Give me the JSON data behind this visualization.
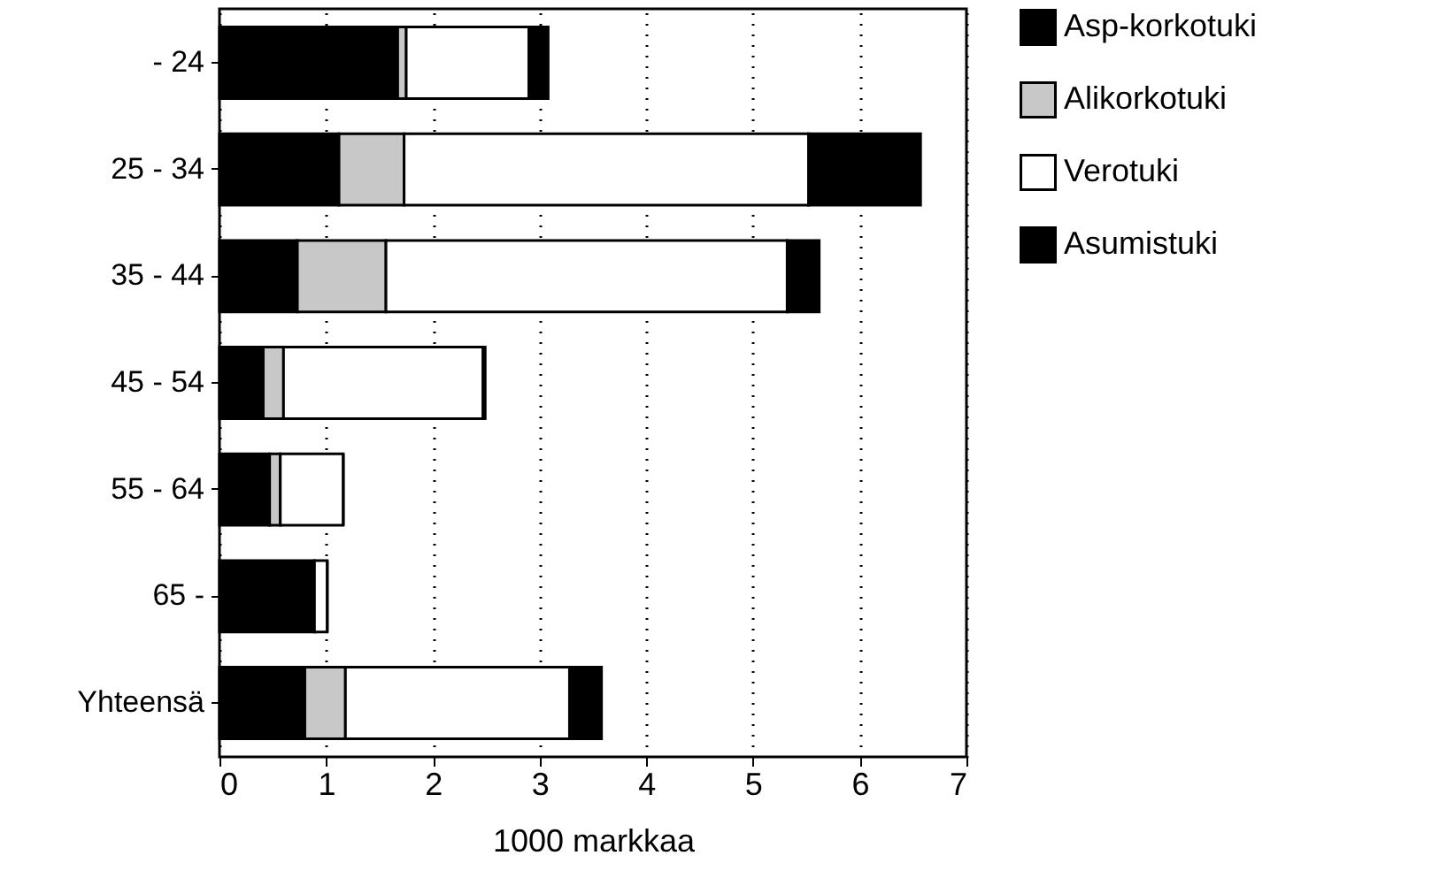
{
  "chart_data": {
    "type": "bar",
    "orientation": "horizontal",
    "stacked": true,
    "xlabel": "1000 markkaa",
    "categories": [
      "- 24",
      "25 - 34",
      "35 - 44",
      "45 - 54",
      "55 - 64",
      "65 -",
      "Yhteensä"
    ],
    "series": [
      {
        "name": "Asp-korkotuki",
        "color": "#000000",
        "values": [
          1.67,
          1.12,
          0.73,
          0.41,
          0.47,
          0.89,
          0.8
        ]
      },
      {
        "name": "Alikorkotuki",
        "color": "#c8c8c8",
        "values": [
          0.08,
          0.61,
          0.83,
          0.19,
          0.1,
          null,
          0.38
        ]
      },
      {
        "name": "Verotuki",
        "color": "#ffffff",
        "values": [
          1.15,
          3.79,
          3.76,
          1.87,
          0.59,
          0.12,
          2.1
        ]
      },
      {
        "name": "Asumistuki",
        "color": "#000000",
        "values": [
          0.18,
          1.05,
          0.3,
          0.02,
          0,
          0,
          0.3
        ]
      }
    ],
    "xlim": [
      0,
      7
    ],
    "xticks": [
      0,
      1,
      2,
      3,
      4,
      5,
      6,
      7
    ],
    "grid": "x",
    "legend": "right"
  }
}
